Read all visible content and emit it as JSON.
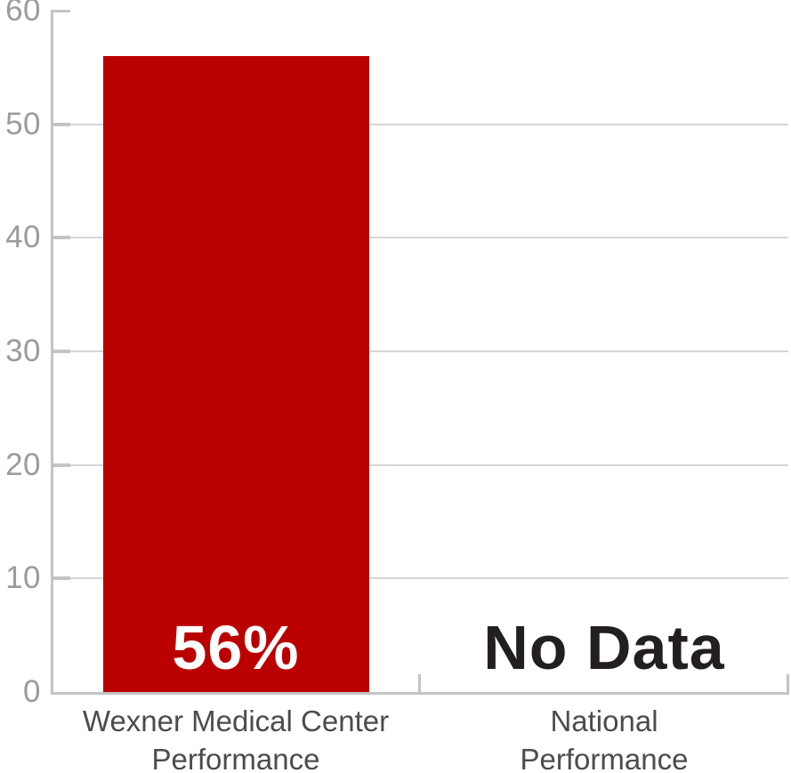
{
  "chart_data": {
    "type": "bar",
    "title": "",
    "xlabel": "",
    "ylabel": "",
    "categories": [
      "Wexner Medical Center Performance",
      "National Performance"
    ],
    "category_label_lines": [
      [
        "Wexner Medical Center",
        "Performance"
      ],
      [
        "National",
        "Performance"
      ]
    ],
    "values": [
      56,
      null
    ],
    "bar_value_labels": [
      "56%",
      "No Data"
    ],
    "ylim": [
      0,
      60
    ],
    "yticks": [
      0,
      10,
      20,
      30,
      40,
      50,
      60
    ],
    "grid": true,
    "legend_position": "none",
    "colors": {
      "bar": "#bb0000",
      "value_label_on_bar": "#ffffff",
      "no_data_label": "#231f20",
      "axis": "#c4c4c6",
      "gridline": "#d6d6d7",
      "tick_label": "#9b9b9d",
      "category_label": "#4c4c4e"
    }
  }
}
